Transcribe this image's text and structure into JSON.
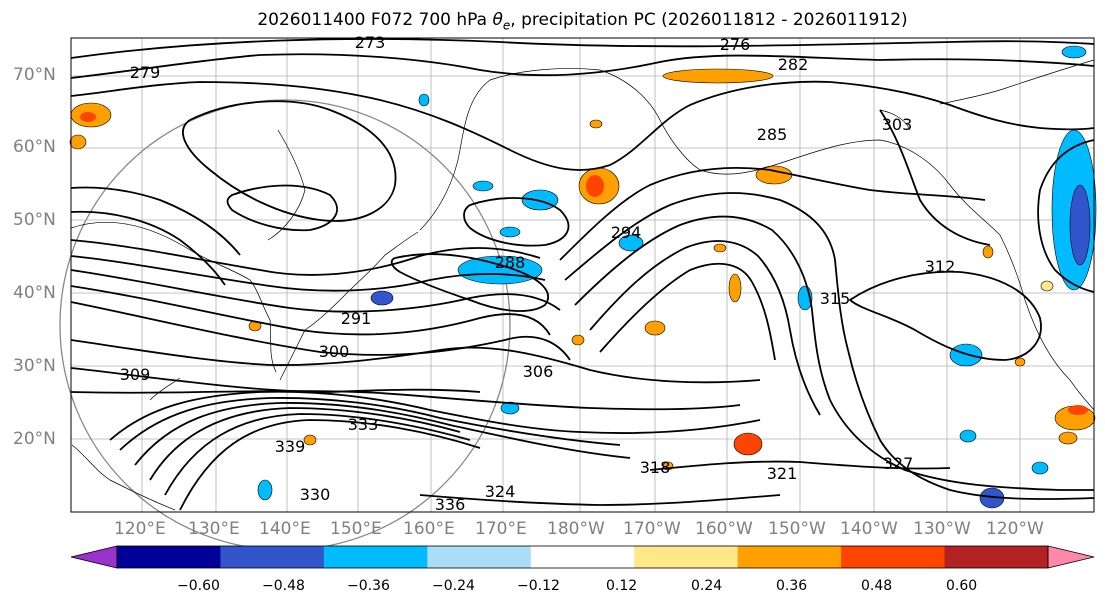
{
  "title": {
    "prefix": "2026011400 F072 700 hPa ",
    "theta": "θ",
    "sub": "e",
    "suffix": ", precipitation PC (2026011812 - 2026011912)"
  },
  "lat_labels": [
    "70°N",
    "60°N",
    "50°N",
    "40°N",
    "30°N",
    "20°N"
  ],
  "lon_labels": [
    "120°E",
    "130°E",
    "140°E",
    "150°E",
    "160°E",
    "170°E",
    "180°W",
    "170°W",
    "160°W",
    "150°W",
    "140°W",
    "130°W",
    "120°W"
  ],
  "contour_labels": [
    "273",
    "276",
    "279",
    "282",
    "285",
    "288",
    "291",
    "294",
    "300",
    "303",
    "306",
    "309",
    "312",
    "315",
    "318",
    "321",
    "324",
    "327",
    "330",
    "333",
    "336",
    "339"
  ],
  "colorbar": {
    "colors": [
      "#9933cc",
      "#000099",
      "#3355cc",
      "#00bbff",
      "#aaddf7",
      "#ffffff",
      "#ffe88a",
      "#ffa000",
      "#ff4400",
      "#b22222",
      "#ff88aa"
    ],
    "tick_labels": [
      "−0.60",
      "−0.48",
      "−0.36",
      "−0.24",
      "−0.12",
      "0.12",
      "0.24",
      "0.36",
      "0.48",
      "0.60"
    ]
  }
}
